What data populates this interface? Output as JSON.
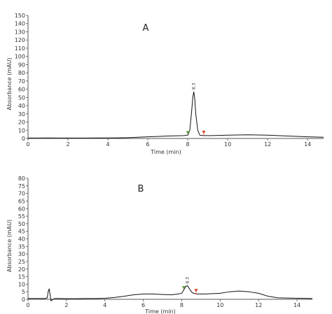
{
  "colors": {
    "trace": "#111111",
    "axis": "#555555",
    "start_marker": "#6fa84a",
    "end_marker": "#d9452c"
  },
  "chart_data": [
    {
      "type": "line",
      "panel_label": "A",
      "xlabel": "Time (min)",
      "ylabel": "Absorbance (mAU)",
      "xlim": [
        0,
        14.8
      ],
      "ylim": [
        0,
        150
      ],
      "x_ticks": [
        0,
        2,
        4,
        6,
        8,
        10,
        12,
        14
      ],
      "y_ticks": [
        0,
        10,
        20,
        30,
        40,
        50,
        60,
        70,
        80,
        90,
        100,
        110,
        120,
        130,
        140,
        150
      ],
      "peak_label": "8.3",
      "peak_time": 8.3,
      "start_marker_time": 8.0,
      "end_marker_time": 8.8,
      "series": [
        {
          "x": [
            0,
            0.5,
            1,
            1.5,
            2,
            2.5,
            3,
            3.5,
            4,
            4.5,
            5,
            5.5,
            6,
            6.5,
            7,
            7.5,
            7.8,
            8.0,
            8.1,
            8.2,
            8.25,
            8.3,
            8.35,
            8.4,
            8.5,
            8.6,
            8.8,
            9.2,
            10,
            11,
            12,
            13,
            14,
            14.8
          ],
          "y": [
            0.5,
            0.5,
            0.6,
            0.5,
            0.5,
            0.5,
            0.5,
            0.6,
            0.6,
            0.7,
            1.0,
            1.5,
            2.0,
            2.5,
            3.0,
            3.3,
            3.5,
            4,
            10,
            35,
            50,
            57,
            48,
            30,
            10,
            4,
            3.5,
            3.5,
            4,
            4.5,
            4,
            3,
            2,
            1.5
          ]
        }
      ]
    },
    {
      "type": "line",
      "panel_label": "B",
      "xlabel": "Time (min)",
      "ylabel": "Absorbance (mAU)",
      "xlim": [
        0,
        14.8
      ],
      "ylim": [
        0,
        80
      ],
      "x_ticks": [
        0,
        2,
        4,
        6,
        8,
        10,
        12,
        14
      ],
      "y_ticks": [
        0,
        5,
        10,
        15,
        20,
        25,
        30,
        35,
        40,
        45,
        50,
        55,
        60,
        65,
        70,
        75,
        80
      ],
      "peak_label": "8.3",
      "peak_time": 8.3,
      "start_marker_time": 8.1,
      "end_marker_time": 8.75,
      "series": [
        {
          "x": [
            0,
            0.5,
            0.9,
            1.0,
            1.05,
            1.1,
            1.15,
            1.2,
            1.3,
            1.4,
            1.6,
            2,
            2.5,
            3,
            3.5,
            4,
            4.5,
            5,
            5.5,
            6,
            6.5,
            7,
            7.5,
            7.8,
            8.0,
            8.1,
            8.2,
            8.3,
            8.4,
            8.5,
            8.6,
            8.8,
            9.2,
            10,
            10.5,
            11,
            11.5,
            12,
            12.5,
            13,
            14,
            14.8
          ],
          "y": [
            0.5,
            0.5,
            0.5,
            1,
            5,
            7,
            3,
            -1,
            0,
            0.5,
            0.5,
            0.4,
            0.4,
            0.5,
            0.5,
            0.7,
            1.2,
            2.0,
            3.0,
            3.5,
            3.5,
            3.2,
            3.0,
            3.5,
            4,
            6,
            8.5,
            9,
            7,
            5,
            4,
            3.5,
            3.5,
            4,
            5,
            5.5,
            5,
            4,
            2,
            1,
            0.7,
            0.5
          ]
        }
      ]
    }
  ]
}
